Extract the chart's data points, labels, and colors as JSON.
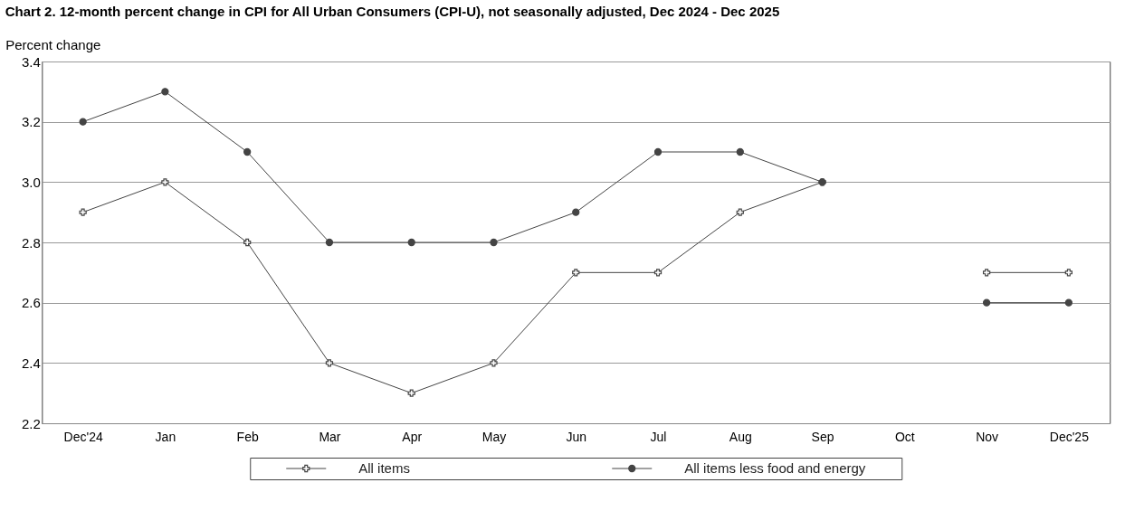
{
  "chart_data": {
    "type": "line",
    "title": "Chart 2. 12-month percent change in CPI for All Urban Consumers (CPI-U), not seasonally adjusted, Dec 2024 - Dec 2025",
    "ylabel": "Percent change",
    "categories": [
      "Dec'24",
      "Jan",
      "Feb",
      "Mar",
      "Apr",
      "May",
      "Jun",
      "Jul",
      "Aug",
      "Sep",
      "Oct",
      "Nov",
      "Dec'25"
    ],
    "series": [
      {
        "name": "All items",
        "color": "#444444",
        "marker": "cross",
        "values": [
          2.9,
          3.0,
          2.8,
          2.4,
          2.3,
          2.4,
          2.7,
          2.7,
          2.9,
          3.0,
          null,
          2.7,
          2.7
        ]
      },
      {
        "name": "All items less food and energy",
        "color": "#444444",
        "marker": "circle",
        "values": [
          3.2,
          3.3,
          3.1,
          2.8,
          2.8,
          2.8,
          2.9,
          3.1,
          3.1,
          3.0,
          null,
          2.6,
          2.6
        ]
      }
    ],
    "ylim": [
      2.2,
      3.4
    ],
    "yticks": [
      2.2,
      2.4,
      2.6,
      2.8,
      {
        "value": 3.0,
        "label": "3.0"
      },
      3.2,
      3.4
    ],
    "grid": "y",
    "legend": "bottom",
    "line_style": "solid"
  }
}
